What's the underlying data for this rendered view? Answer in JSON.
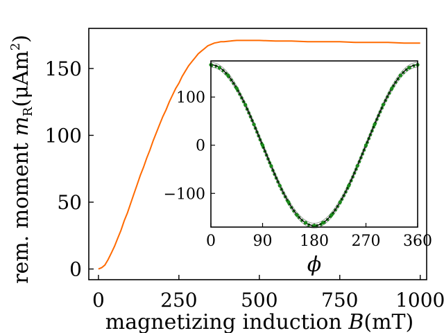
{
  "chart_data": [
    {
      "type": "line",
      "title": "",
      "xlabel": "magnetizing induction B(mT)",
      "xlabel_parts": {
        "pre": "magnetizing induction ",
        "var": "B",
        "post": "(mT)"
      },
      "ylabel": "rem. moment m_R(μAm²)",
      "ylabel_parts": {
        "pre": "rem. moment ",
        "var": "m",
        "sub": "R",
        "post": "(μAm",
        "sup": "2",
        "close": ")"
      },
      "xlim": [
        -30,
        1020
      ],
      "ylim": [
        -8,
        180
      ],
      "x_ticks": [
        0,
        250,
        500,
        750,
        1000
      ],
      "x_tick_labels": [
        "0",
        "250",
        "500",
        "750",
        "1000"
      ],
      "y_ticks": [
        0,
        50,
        100,
        150
      ],
      "y_tick_labels": [
        "0",
        "50",
        "100",
        "150"
      ],
      "grid": false,
      "series": [
        {
          "color": "#ff6a00",
          "x": [
            0,
            10,
            20,
            30,
            40,
            50,
            60,
            70,
            80,
            90,
            100,
            110,
            120,
            130,
            140,
            150,
            160,
            170,
            180,
            190,
            200,
            210,
            220,
            230,
            240,
            250,
            260,
            270,
            280,
            290,
            300,
            310,
            320,
            330,
            340,
            350,
            360,
            370,
            380,
            390,
            400,
            410,
            420,
            430,
            440,
            450,
            470,
            500,
            550,
            600,
            650,
            700,
            750,
            800,
            850,
            900,
            950,
            1000
          ],
          "y": [
            0,
            1,
            3,
            7,
            12,
            17,
            23,
            29,
            36,
            42,
            49,
            56,
            63,
            70,
            76,
            83,
            89,
            96,
            102,
            108,
            114,
            119,
            125,
            130,
            135,
            139,
            144,
            148,
            152,
            155,
            158,
            161,
            163,
            165,
            167,
            168,
            169,
            169.5,
            170,
            170,
            170.3,
            170.5,
            170.8,
            171,
            171,
            171,
            171,
            171,
            170.5,
            170.5,
            170,
            170,
            170,
            169.5,
            169.5,
            169.5,
            169,
            169
          ]
        }
      ]
    },
    {
      "type": "scatter",
      "title": "",
      "xlabel": "ϕ",
      "ylabel": "",
      "xlim": [
        0,
        360
      ],
      "ylim": [
        -170,
        175
      ],
      "x_ticks": [
        0,
        90,
        180,
        270,
        360
      ],
      "x_tick_labels": [
        "0",
        "90",
        "180",
        "270",
        "360"
      ],
      "y_ticks": [
        -100,
        0,
        100
      ],
      "y_tick_labels": [
        "−100",
        "0",
        "100"
      ],
      "grid": false,
      "amplitude": 167,
      "series": [
        {
          "marker": "circle",
          "color": "#1a8a1a",
          "x": [
            0,
            15,
            30,
            45,
            60,
            75,
            90,
            105,
            120,
            135,
            150,
            165,
            180,
            195,
            210,
            225,
            240,
            255,
            270,
            285,
            300,
            315,
            330,
            345,
            360
          ],
          "y": [
            167,
            161,
            145,
            118,
            84,
            43,
            0,
            -43,
            -84,
            -118,
            -145,
            -161,
            -167,
            -161,
            -145,
            -118,
            -84,
            -43,
            0,
            43,
            84,
            118,
            145,
            161,
            167
          ]
        },
        {
          "marker": "line",
          "color": "#000000",
          "x": [
            0,
            45,
            90,
            135,
            180,
            225,
            270,
            315,
            360
          ],
          "y": [
            167,
            118,
            0,
            -118,
            -167,
            -118,
            0,
            118,
            167
          ]
        }
      ]
    }
  ]
}
